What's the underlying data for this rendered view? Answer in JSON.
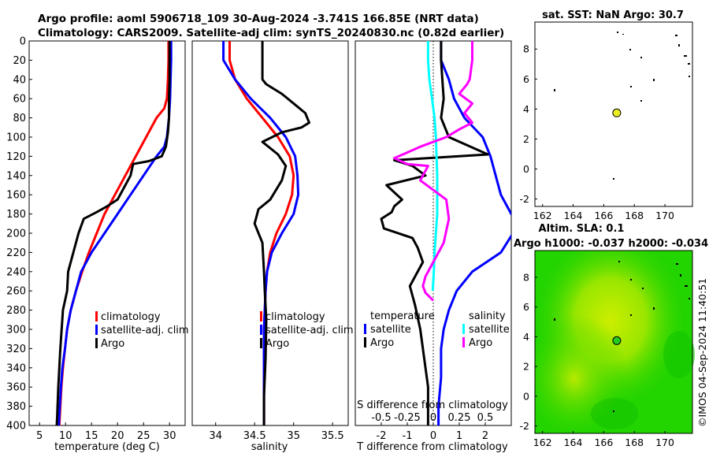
{
  "title": {
    "line1": "Argo profile: aoml 5906718_109 30-Aug-2024 -3.741S 166.85E (NRT data)",
    "line2": "Climatology: CARS2009. Satellite-adj clim: synTS_20240830.nc (0.82d earlier)"
  },
  "credit": "©IMOS 04-Sep-2024 11:40:51",
  "colors": {
    "climatology": "#ff0000",
    "satellite": "#0000ff",
    "argo": "#000000",
    "sat_sal": "#00ffff",
    "argo_sal": "#ff00ff",
    "map_land_dot": "#000000",
    "argo_marker": "#e8f020",
    "sla_green": "#22dd00",
    "sla_yellow": "#ccee00"
  },
  "chart_data": [
    {
      "type": "line",
      "panel": "temperature",
      "xlabel": "temperature (deg C)",
      "xlim": [
        3,
        33
      ],
      "ylim": [
        400,
        0
      ],
      "xticks": [
        5,
        10,
        15,
        20,
        25,
        30
      ],
      "yticks": [
        0,
        20,
        40,
        60,
        80,
        100,
        120,
        140,
        160,
        180,
        200,
        220,
        240,
        260,
        280,
        300,
        320,
        340,
        360,
        380,
        400
      ],
      "legend": [
        "climatology",
        "satellite-adj. clim",
        "Argo"
      ],
      "legend_position": "lower-right",
      "series": [
        {
          "name": "climatology",
          "color": "#ff0000",
          "x": [
            29.8,
            29.8,
            29.7,
            29.5,
            29.0,
            27.5,
            25.5,
            23.5,
            21.5,
            19.5,
            17.5,
            16.0,
            14.5,
            13.2,
            12.0,
            11.0,
            10.3,
            9.9,
            9.5,
            9.2,
            9.0,
            8.8
          ],
          "y": [
            0,
            20,
            40,
            60,
            70,
            80,
            100,
            120,
            140,
            160,
            180,
            200,
            220,
            240,
            260,
            280,
            300,
            320,
            340,
            360,
            380,
            400
          ]
        },
        {
          "name": "satellite-adj. clim",
          "color": "#0000ff",
          "x": [
            30.3,
            30.3,
            30.2,
            30.1,
            29.9,
            29.5,
            29.0,
            27.5,
            25.0,
            22.5,
            20.0,
            17.5,
            15.0,
            13.0,
            12.0,
            11.0,
            10.3,
            9.9,
            9.4,
            9.1,
            8.9,
            8.7
          ],
          "y": [
            0,
            20,
            40,
            60,
            80,
            100,
            110,
            120,
            140,
            160,
            180,
            200,
            220,
            240,
            260,
            280,
            300,
            320,
            340,
            360,
            380,
            400
          ]
        },
        {
          "name": "Argo",
          "color": "#000000",
          "x": [
            30.0,
            30.0,
            30.0,
            29.9,
            29.9,
            29.7,
            29.3,
            28.5,
            26.0,
            23.0,
            22.5,
            21.0,
            20.0,
            18.0,
            16.0,
            13.5,
            12.5,
            11.5,
            10.5,
            10.3,
            9.5,
            9.0,
            8.6,
            8.4,
            8.3
          ],
          "y": [
            0,
            20,
            40,
            60,
            80,
            95,
            110,
            120,
            125,
            128,
            140,
            155,
            165,
            172,
            178,
            185,
            200,
            220,
            240,
            260,
            280,
            320,
            360,
            390,
            400
          ]
        }
      ]
    },
    {
      "type": "line",
      "panel": "salinity",
      "xlabel": "salinity",
      "xlim": [
        33.7,
        35.7
      ],
      "ylim": [
        400,
        0
      ],
      "xticks": [
        34,
        34.5,
        35,
        35.5
      ],
      "legend": [
        "climatology",
        "satellite-adj. clim",
        "Argo"
      ],
      "legend_position": "lower-right",
      "series": [
        {
          "name": "climatology",
          "color": "#ff0000",
          "x": [
            34.18,
            34.18,
            34.25,
            34.4,
            34.6,
            34.8,
            34.95,
            35.0,
            34.98,
            34.9,
            34.78,
            34.7,
            34.66,
            34.64,
            34.63,
            34.62,
            34.62,
            34.62,
            34.62
          ],
          "y": [
            0,
            20,
            40,
            60,
            80,
            100,
            120,
            140,
            160,
            180,
            200,
            220,
            240,
            260,
            280,
            300,
            340,
            370,
            400
          ]
        },
        {
          "name": "satellite-adj. clim",
          "color": "#0000ff",
          "x": [
            34.1,
            34.1,
            34.25,
            34.45,
            34.7,
            34.9,
            35.02,
            35.05,
            35.06,
            35.0,
            34.85,
            34.72,
            34.66,
            34.64,
            34.63,
            34.62,
            34.62,
            34.62,
            34.62
          ],
          "y": [
            0,
            20,
            40,
            60,
            80,
            100,
            120,
            140,
            160,
            180,
            200,
            220,
            240,
            260,
            280,
            300,
            340,
            370,
            400
          ]
        },
        {
          "name": "Argo",
          "color": "#000000",
          "x": [
            34.6,
            34.6,
            34.6,
            34.65,
            34.85,
            35.0,
            35.15,
            35.2,
            35.1,
            34.85,
            34.6,
            34.8,
            34.9,
            34.85,
            34.7,
            34.55,
            34.5,
            34.6,
            34.62,
            34.63,
            34.65,
            34.64,
            34.62,
            34.62
          ],
          "y": [
            0,
            20,
            40,
            45,
            55,
            65,
            75,
            85,
            90,
            95,
            105,
            118,
            130,
            145,
            165,
            175,
            190,
            210,
            240,
            260,
            290,
            330,
            370,
            400
          ]
        }
      ]
    },
    {
      "type": "line",
      "panel": "differences",
      "xlabel": "T difference from climatology",
      "xlabel_top": "S difference from climatology",
      "xlim": [
        -3,
        3
      ],
      "ylim": [
        400,
        0
      ],
      "xticks": [
        -2,
        -1,
        0,
        1,
        2
      ],
      "xtick_labels": [
        "-2",
        "-1",
        "0",
        "1",
        "2"
      ],
      "s_ticks": [
        "-0.5",
        "-0.25",
        "0",
        "0.25",
        "0.5"
      ],
      "s_scale": 4,
      "legend_temperature_title": "temperature",
      "legend_salinity_title": "salinity",
      "legend_temperature_items": [
        "satellite",
        "Argo"
      ],
      "legend_salinity_items": [
        "satellite",
        "Argo"
      ],
      "series": [
        {
          "name": "T satellite",
          "color": "#0000ff",
          "x": [
            0.3,
            0.3,
            0.6,
            0.8,
            1.2,
            1.9,
            2.2,
            2.4,
            2.6,
            2.8,
            3.0,
            3.3,
            2.6,
            1.5,
            0.9,
            0.6,
            0.4,
            0.3,
            0.3,
            0.2,
            0.2
          ],
          "y": [
            0,
            20,
            40,
            60,
            80,
            100,
            120,
            140,
            160,
            170,
            180,
            190,
            220,
            240,
            260,
            280,
            300,
            320,
            350,
            380,
            400
          ]
        },
        {
          "name": "T Argo",
          "color": "#000000",
          "x": [
            0.3,
            0.3,
            0.35,
            0.4,
            0.3,
            0.6,
            2.1,
            -1.5,
            -0.8,
            -0.3,
            -1.8,
            -1.2,
            -1.5,
            -1.6,
            -2.0,
            -1.9,
            -0.8,
            -0.6,
            -0.4,
            -0.7,
            -0.9,
            -0.7,
            -0.5,
            -0.3,
            -0.2,
            -0.2,
            -0.2
          ],
          "y": [
            0,
            20,
            40,
            60,
            80,
            100,
            118,
            124,
            130,
            140,
            150,
            165,
            172,
            178,
            185,
            195,
            205,
            215,
            230,
            245,
            255,
            275,
            300,
            340,
            360,
            390,
            400
          ]
        },
        {
          "name": "S satellite",
          "color": "#00ffff",
          "x": [
            -0.2,
            -0.2,
            -0.15,
            -0.05,
            0.05,
            0.1,
            0.15,
            0.15,
            0.1,
            0.05,
            0.02,
            0.0,
            -0.02
          ],
          "y": [
            0,
            20,
            40,
            60,
            80,
            100,
            140,
            180,
            200,
            220,
            240,
            250,
            260
          ]
        },
        {
          "name": "S Argo",
          "color": "#ff00ff",
          "x": [
            1.5,
            1.5,
            1.4,
            1.3,
            1.0,
            1.5,
            1.2,
            1.5,
            1.0,
            0.5,
            -0.5,
            -1.5,
            -1.0,
            -0.2,
            -0.5,
            0.5,
            0.6,
            0.4,
            0.0,
            -0.3,
            -0.4,
            -0.3,
            0.0
          ],
          "y": [
            0,
            20,
            40,
            45,
            55,
            65,
            75,
            85,
            92,
            100,
            110,
            122,
            128,
            130,
            145,
            165,
            185,
            210,
            230,
            245,
            255,
            262,
            270
          ]
        }
      ]
    },
    {
      "type": "scatter",
      "panel": "sst-map",
      "title": "sat. SST: NaN Argo: 30.7",
      "xlim": [
        161.5,
        171.8
      ],
      "ylim": [
        -2.5,
        9.8
      ],
      "xticks": [
        162,
        164,
        166,
        168,
        170
      ],
      "yticks": [
        -2,
        0,
        2,
        4,
        6,
        8
      ],
      "argo_position": {
        "lon": 166.85,
        "lat": 3.74
      }
    },
    {
      "type": "heatmap",
      "panel": "sla-map",
      "title_line1": "Altim. SLA: 0.1",
      "title_line2": "Argo h1000: -0.037 h2000: -0.034",
      "xlim": [
        161.5,
        171.8
      ],
      "ylim": [
        -2.5,
        9.8
      ],
      "xticks": [
        162,
        164,
        166,
        168,
        170
      ],
      "yticks": [
        -2,
        0,
        2,
        4,
        6,
        8
      ],
      "argo_position": {
        "lon": 166.85,
        "lat": 3.74
      }
    }
  ]
}
